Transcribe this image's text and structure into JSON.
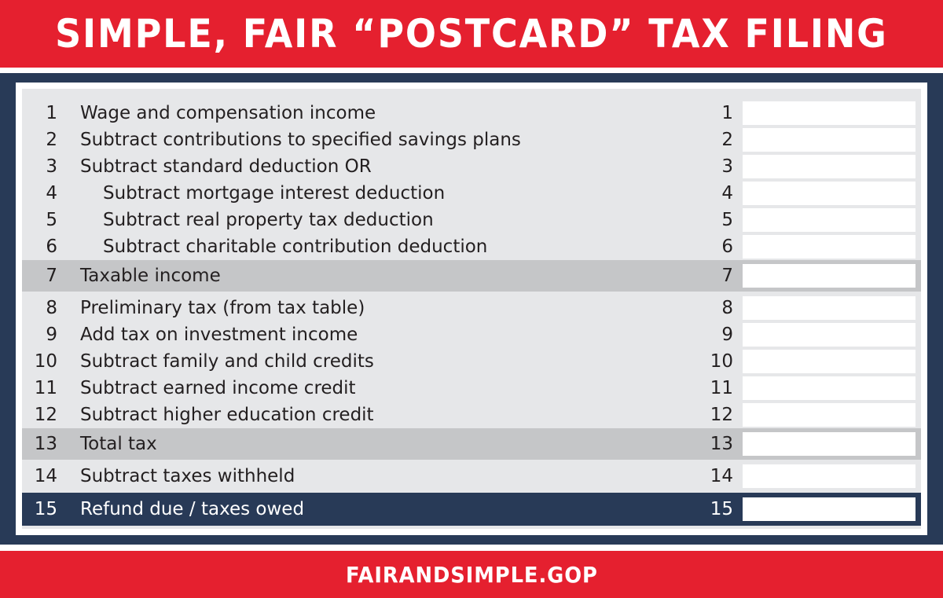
{
  "header": {
    "title": "SIMPLE, FAIR “POSTCARD” TAX FILING"
  },
  "rows": [
    {
      "number": "1",
      "label": "Wage and compensation income",
      "line": "1"
    },
    {
      "number": "2",
      "label": "Subtract contributions to specified savings plans",
      "line": "2"
    },
    {
      "number": "3",
      "label": "Subtract standard deduction OR",
      "line": "3"
    },
    {
      "number": "4",
      "label": "Subtract mortgage interest deduction",
      "line": "4"
    },
    {
      "number": "5",
      "label": "Subtract real property tax deduction",
      "line": "5"
    },
    {
      "number": "6",
      "label": "Subtract charitable contribution deduction",
      "line": "6"
    },
    {
      "number": "7",
      "label": "Taxable income",
      "line": "7"
    },
    {
      "number": "8",
      "label": "Preliminary tax (from tax table)",
      "line": "8"
    },
    {
      "number": "9",
      "label": "Add tax on investment income",
      "line": "9"
    },
    {
      "number": "10",
      "label": "Subtract family and child credits",
      "line": "10"
    },
    {
      "number": "11",
      "label": "Subtract earned income credit",
      "line": "11"
    },
    {
      "number": "12",
      "label": "Subtract higher education credit",
      "line": "12"
    },
    {
      "number": "13",
      "label": "Total tax",
      "line": "13"
    },
    {
      "number": "14",
      "label": "Subtract taxes withheld",
      "line": "14"
    },
    {
      "number": "15",
      "label": "Refund due / taxes owed",
      "line": "15"
    }
  ],
  "footer": {
    "website": "FAIRANDSIMPLE.GOP"
  },
  "colors": {
    "red": "#e5202f",
    "navy": "#283a57",
    "panel": "#e6e7e9",
    "band": "#c5c6c8"
  }
}
